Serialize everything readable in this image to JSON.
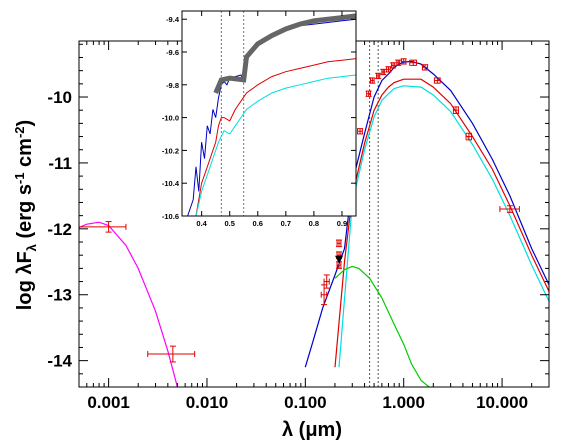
{
  "chart_data": {
    "type": "line",
    "xscale": "log",
    "xlabel": "λ (μm)",
    "ylabel": "log λF_λ (erg s^-1 cm^-2)",
    "xlim": [
      0.0005,
      30
    ],
    "ylim": [
      -14.4,
      -9.15
    ],
    "xticks": [
      0.001,
      0.01,
      0.1,
      1.0,
      10.0
    ],
    "xtick_labels": [
      "0.001",
      "0.010",
      "0.100",
      "1.000",
      "10.000"
    ],
    "yticks": [
      -14,
      -13,
      -12,
      -11,
      -10
    ],
    "ytick_labels": [
      "-14",
      "-13",
      "-12",
      "-11",
      "-10"
    ],
    "vertical_lines": [
      0.45,
      0.55
    ],
    "series": [
      {
        "color": "#ff00ff",
        "x": [
          0.0005,
          0.0006,
          0.0008,
          0.001,
          0.0015,
          0.002,
          0.003,
          0.004,
          0.005
        ],
        "y": [
          -11.98,
          -11.93,
          -11.9,
          -11.95,
          -12.25,
          -12.6,
          -13.25,
          -13.85,
          -14.4
        ]
      },
      {
        "color": "#0000c8",
        "x": [
          0.1,
          0.12,
          0.15,
          0.2,
          0.25,
          0.3,
          0.4,
          0.5,
          0.6,
          0.7,
          0.8,
          0.9,
          1.0,
          1.2,
          1.5,
          2,
          3,
          5,
          8,
          12,
          20,
          30
        ],
        "y": [
          -14.1,
          -13.7,
          -13.2,
          -12.7,
          -12.3,
          -11.3,
          -10.55,
          -10.0,
          -9.75,
          -9.65,
          -9.55,
          -9.5,
          -9.47,
          -9.46,
          -9.5,
          -9.65,
          -9.9,
          -10.4,
          -10.95,
          -11.5,
          -12.3,
          -12.85
        ]
      },
      {
        "color": "#e00000",
        "x": [
          0.2,
          0.25,
          0.3,
          0.4,
          0.5,
          0.6,
          0.7,
          0.8,
          1.0,
          1.5,
          2,
          3,
          5,
          8,
          12,
          20,
          30
        ],
        "y": [
          -14.1,
          -12.5,
          -11.5,
          -10.7,
          -10.2,
          -9.97,
          -9.85,
          -9.78,
          -9.73,
          -9.73,
          -9.85,
          -10.1,
          -10.6,
          -11.1,
          -11.65,
          -12.4,
          -12.95
        ]
      },
      {
        "color": "#00dede",
        "x": [
          0.22,
          0.3,
          0.4,
          0.5,
          0.6,
          0.7,
          0.8,
          1.0,
          1.5,
          2,
          3,
          5,
          8,
          12,
          20,
          30
        ],
        "y": [
          -14.1,
          -11.6,
          -10.8,
          -10.3,
          -10.05,
          -9.95,
          -9.87,
          -9.83,
          -9.85,
          -9.97,
          -10.22,
          -10.72,
          -11.25,
          -11.8,
          -12.55,
          -13.1
        ]
      },
      {
        "color": "#00cc00",
        "x": [
          0.2,
          0.25,
          0.3,
          0.35,
          0.45,
          0.6,
          0.8,
          1.0,
          1.2,
          1.5,
          2.0
        ],
        "y": [
          -12.75,
          -12.62,
          -12.57,
          -12.6,
          -12.75,
          -13.05,
          -13.45,
          -13.75,
          -14.05,
          -14.3,
          -14.45
        ]
      }
    ],
    "data_points": [
      {
        "x": 0.001,
        "y": -11.97,
        "xerr_lo": 0.0005,
        "xerr_hi": 0.0015,
        "yerr": 0.08
      },
      {
        "x": 0.0045,
        "y": -13.9,
        "xerr_lo": 0.0025,
        "xerr_hi": 0.0075,
        "yerr": 0.12
      },
      {
        "x": 0.155,
        "y": -13.0,
        "xerr_lo": 0.145,
        "xerr_hi": 0.165,
        "yerr": 0.15
      },
      {
        "x": 0.165,
        "y": -12.8,
        "xerr_lo": 0.155,
        "xerr_hi": 0.175,
        "yerr": 0.1
      },
      {
        "x": 0.22,
        "y": -12.55,
        "xerr_lo": 0.21,
        "xerr_hi": 0.23,
        "yerr": 0.05
      },
      {
        "x": 0.22,
        "y": -12.4,
        "xerr_lo": 0.21,
        "xerr_hi": 0.23,
        "yerr": 0.05
      },
      {
        "x": 0.22,
        "y": -12.22,
        "xerr_lo": 0.21,
        "xerr_hi": 0.23,
        "yerr": 0.05
      },
      {
        "x": 0.36,
        "y": -10.52,
        "xerr_lo": 0.34,
        "xerr_hi": 0.38,
        "yerr": 0.04
      },
      {
        "x": 0.44,
        "y": -9.95,
        "xerr_lo": 0.42,
        "xerr_hi": 0.46,
        "yerr": 0.04
      },
      {
        "x": 0.48,
        "y": -9.75,
        "xerr_lo": 0.46,
        "xerr_hi": 0.5,
        "yerr": 0.04
      },
      {
        "x": 0.55,
        "y": -9.68,
        "xerr_lo": 0.53,
        "xerr_hi": 0.57,
        "yerr": 0.04
      },
      {
        "x": 0.62,
        "y": -9.62,
        "xerr_lo": 0.6,
        "xerr_hi": 0.64,
        "yerr": 0.04
      },
      {
        "x": 0.7,
        "y": -9.58,
        "xerr_lo": 0.67,
        "xerr_hi": 0.73,
        "yerr": 0.04
      },
      {
        "x": 0.78,
        "y": -9.52,
        "xerr_lo": 0.75,
        "xerr_hi": 0.81,
        "yerr": 0.04
      },
      {
        "x": 0.88,
        "y": -9.48,
        "xerr_lo": 0.85,
        "xerr_hi": 0.91,
        "yerr": 0.04
      },
      {
        "x": 1.0,
        "y": -9.46,
        "xerr_lo": 0.95,
        "xerr_hi": 1.05,
        "yerr": 0.04
      },
      {
        "x": 1.25,
        "y": -9.48,
        "xerr_lo": 1.15,
        "xerr_hi": 1.35,
        "yerr": 0.04
      },
      {
        "x": 1.65,
        "y": -9.55,
        "xerr_lo": 1.55,
        "xerr_hi": 1.75,
        "yerr": 0.04
      },
      {
        "x": 2.2,
        "y": -9.75,
        "xerr_lo": 2.05,
        "xerr_hi": 2.35,
        "yerr": 0.04
      },
      {
        "x": 3.4,
        "y": -10.2,
        "xerr_lo": 3.2,
        "xerr_hi": 3.6,
        "yerr": 0.05
      },
      {
        "x": 4.6,
        "y": -10.6,
        "xerr_lo": 4.3,
        "xerr_hi": 4.9,
        "yerr": 0.05
      },
      {
        "x": 12.0,
        "y": -11.7,
        "xerr_lo": 9.5,
        "xerr_hi": 15.0,
        "yerr": 0.05
      }
    ],
    "upper_limit": {
      "x": 0.22,
      "y": -12.53
    },
    "inset": {
      "xlim": [
        0.33,
        0.95
      ],
      "ylim": [
        -10.6,
        -9.35
      ],
      "xticks": [
        0.4,
        0.5,
        0.6,
        0.7,
        0.8,
        0.9
      ],
      "xtick_labels": [
        "0.4",
        "0.5",
        "0.6",
        "0.7",
        "0.8",
        "0.9"
      ],
      "yticks": [
        -10.6,
        -10.4,
        -10.2,
        -10.0,
        -9.8,
        -9.6,
        -9.4
      ],
      "ytick_labels": [
        "-10.6",
        "-10.4",
        "-10.2",
        "-10.0",
        "-9.8",
        "-9.6",
        "-9.4"
      ],
      "vertical_lines": [
        0.47,
        0.55
      ],
      "series": [
        {
          "color": "#0000c8",
          "x": [
            0.35,
            0.37,
            0.38,
            0.39,
            0.4,
            0.41,
            0.42,
            0.43,
            0.44,
            0.45,
            0.46,
            0.47,
            0.48,
            0.49,
            0.5,
            0.52,
            0.54,
            0.55,
            0.56,
            0.58,
            0.6,
            0.62,
            0.65,
            0.7,
            0.75,
            0.8,
            0.85,
            0.9,
            0.95
          ],
          "y": [
            -10.6,
            -10.5,
            -10.3,
            -10.45,
            -10.15,
            -10.25,
            -10.05,
            -10.1,
            -9.95,
            -10.0,
            -9.88,
            -9.8,
            -9.78,
            -9.8,
            -9.76,
            -9.75,
            -9.74,
            -9.78,
            -9.65,
            -9.6,
            -9.55,
            -9.52,
            -9.5,
            -9.47,
            -9.44,
            -9.43,
            -9.42,
            -9.41,
            -9.4
          ]
        },
        {
          "color": "#666666",
          "width": 5,
          "x": [
            0.45,
            0.47,
            0.5,
            0.55,
            0.56,
            0.6,
            0.65,
            0.7,
            0.75,
            0.8,
            0.85,
            0.9,
            0.95
          ],
          "y": [
            -9.85,
            -9.77,
            -9.76,
            -9.77,
            -9.63,
            -9.55,
            -9.5,
            -9.46,
            -9.43,
            -9.41,
            -9.4,
            -9.39,
            -9.38
          ]
        },
        {
          "color": "#e00000",
          "x": [
            0.38,
            0.4,
            0.42,
            0.44,
            0.45,
            0.46,
            0.47,
            0.48,
            0.5,
            0.52,
            0.54,
            0.56,
            0.6,
            0.65,
            0.7,
            0.75,
            0.8,
            0.85,
            0.9,
            0.95
          ],
          "y": [
            -10.6,
            -10.4,
            -10.3,
            -10.2,
            -10.15,
            -10.05,
            -10.0,
            -10.0,
            -10.02,
            -9.95,
            -9.9,
            -9.85,
            -9.8,
            -9.75,
            -9.72,
            -9.7,
            -9.68,
            -9.66,
            -9.65,
            -9.64
          ]
        },
        {
          "color": "#00dede",
          "x": [
            0.38,
            0.4,
            0.42,
            0.44,
            0.46,
            0.48,
            0.5,
            0.52,
            0.54,
            0.56,
            0.6,
            0.65,
            0.7,
            0.75,
            0.8,
            0.85,
            0.9,
            0.95
          ],
          "y": [
            -10.6,
            -10.45,
            -10.35,
            -10.25,
            -10.15,
            -10.08,
            -10.1,
            -10.05,
            -10.0,
            -9.95,
            -9.9,
            -9.85,
            -9.82,
            -9.8,
            -9.78,
            -9.76,
            -9.75,
            -9.74
          ]
        }
      ]
    }
  },
  "colors": {
    "errorbars": "#e00000",
    "axes": "#000000"
  }
}
